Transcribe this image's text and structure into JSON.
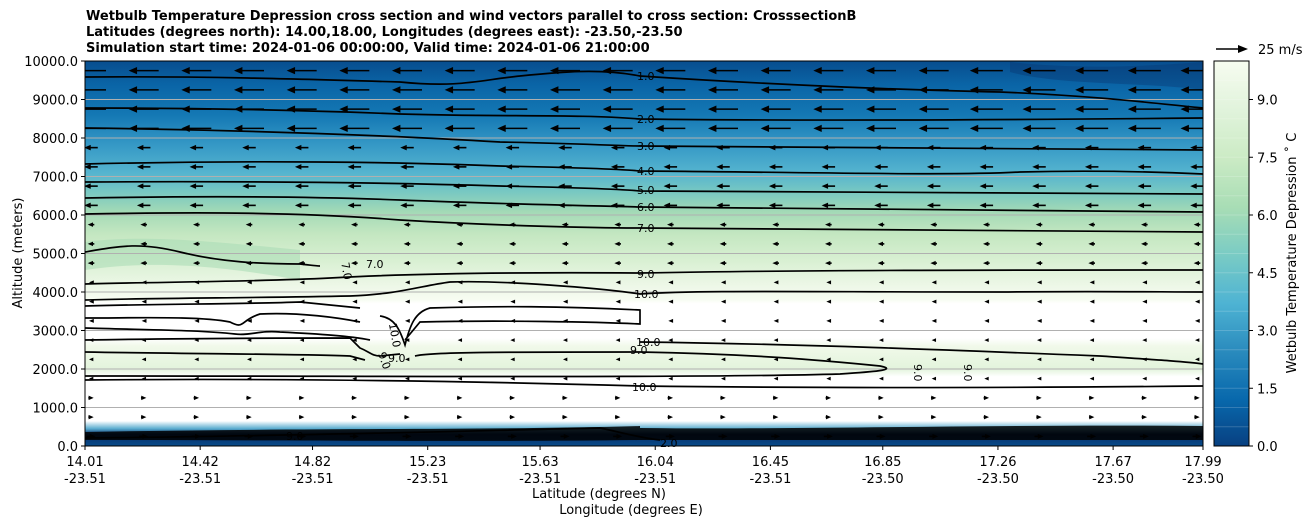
{
  "title_lines": [
    "Wetbulb Temperature Depression cross section and wind vectors parallel to cross section: CrosssectionB",
    "Latitudes (degrees north): 14.00,18.00, Longitudes (degrees east): -23.50,-23.50",
    "Simulation start time: 2024-01-06 00:00:00, Valid time: 2024-01-06 21:00:00"
  ],
  "quiver_key_label": "25 m/s",
  "chart_data": {
    "type": "contourf",
    "ylabel": "Altitude (meters)",
    "xlabel_lines": [
      "Latitude (degrees N)",
      "Longitude (degrees E)"
    ],
    "ylim": [
      0,
      10000
    ],
    "yticks": [
      "0.0",
      "1000.0",
      "2000.0",
      "3000.0",
      "4000.0",
      "5000.0",
      "6000.0",
      "7000.0",
      "8000.0",
      "9000.0",
      "10000.0"
    ],
    "xticks": [
      {
        "lat": "14.01",
        "lon": "-23.51"
      },
      {
        "lat": "14.42",
        "lon": "-23.51"
      },
      {
        "lat": "14.82",
        "lon": "-23.51"
      },
      {
        "lat": "15.23",
        "lon": "-23.51"
      },
      {
        "lat": "15.63",
        "lon": "-23.51"
      },
      {
        "lat": "16.04",
        "lon": "-23.51"
      },
      {
        "lat": "16.45",
        "lon": "-23.51"
      },
      {
        "lat": "16.85",
        "lon": "-23.50"
      },
      {
        "lat": "17.26",
        "lon": "-23.50"
      },
      {
        "lat": "17.67",
        "lon": "-23.50"
      },
      {
        "lat": "17.99",
        "lon": "-23.50"
      }
    ],
    "grid": "horizontal",
    "colorbar": {
      "label": "Wetbulb Temperature Depression ˚ C",
      "ticks": [
        "0.0",
        "1.5",
        "3.0",
        "4.5",
        "6.0",
        "7.5",
        "9.0"
      ],
      "range": [
        0,
        10
      ],
      "levels": 20,
      "colormap": "GnBu_r",
      "colors": [
        "#08306b",
        "#08589e",
        "#2b8cbe",
        "#4eb3d3",
        "#7bccc4",
        "#a8ddb5",
        "#ccebc5",
        "#e0f3db",
        "#f7fcf0"
      ]
    },
    "contour_lines": [
      {
        "level": "1.0",
        "altitude_m": 9500
      },
      {
        "level": "2.0",
        "altitude_m": 8700
      },
      {
        "level": "3.0",
        "altitude_m": 7700
      },
      {
        "level": "4.0",
        "altitude_m": 7050
      },
      {
        "level": "5.0",
        "altitude_m": 6500
      },
      {
        "level": "6.0",
        "altitude_m": 6050
      },
      {
        "level": "7.0",
        "altitude_m": 5500
      },
      {
        "level": "9.0",
        "altitude_m": 4500
      },
      {
        "level": "10.0",
        "altitude_m": 3950
      },
      {
        "level": "10.0",
        "altitude_m": 2700
      },
      {
        "level": "9.0",
        "altitude_m": 2250
      },
      {
        "level": "10.0",
        "altitude_m": 1550
      }
    ],
    "wind": {
      "direction": "easterly above ~2800 m, westerly below ~1500 m",
      "reference_speed": "25 m/s"
    }
  }
}
